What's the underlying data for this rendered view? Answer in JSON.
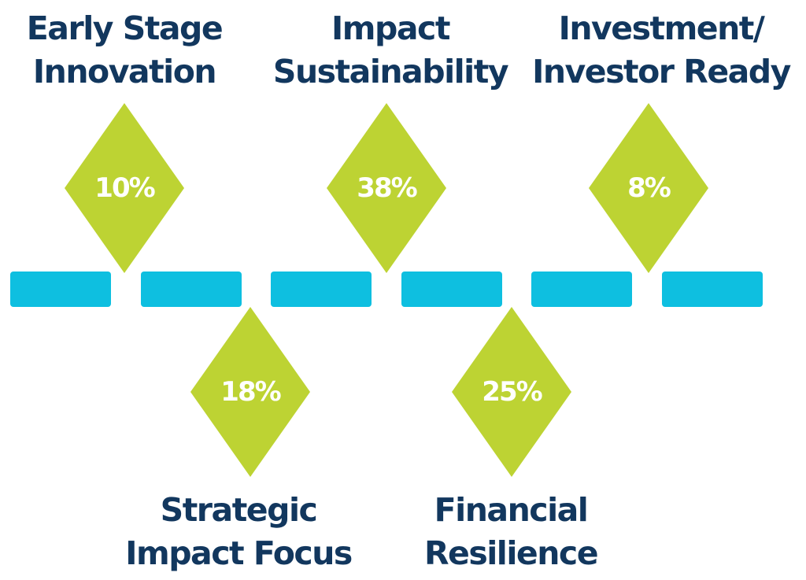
{
  "colors": {
    "label_text": "#12375e",
    "diamond_fill": "#bdd333",
    "timeline_segment": "#0ebfe0",
    "percent_text": "#ffffff"
  },
  "milestones": [
    {
      "lines": [
        "Early Stage",
        "Innovation"
      ],
      "percent": "10%",
      "value": 10
    },
    {
      "lines": [
        "Strategic",
        "Impact Focus"
      ],
      "percent": "18%",
      "value": 18
    },
    {
      "lines": [
        "Impact",
        "Sustainability"
      ],
      "percent": "38%",
      "value": 38
    },
    {
      "lines": [
        "Financial",
        "Resilience"
      ],
      "percent": "25%",
      "value": 25
    },
    {
      "lines": [
        "Investment/",
        "Investor Ready"
      ],
      "percent": "8%",
      "value": 8
    }
  ]
}
